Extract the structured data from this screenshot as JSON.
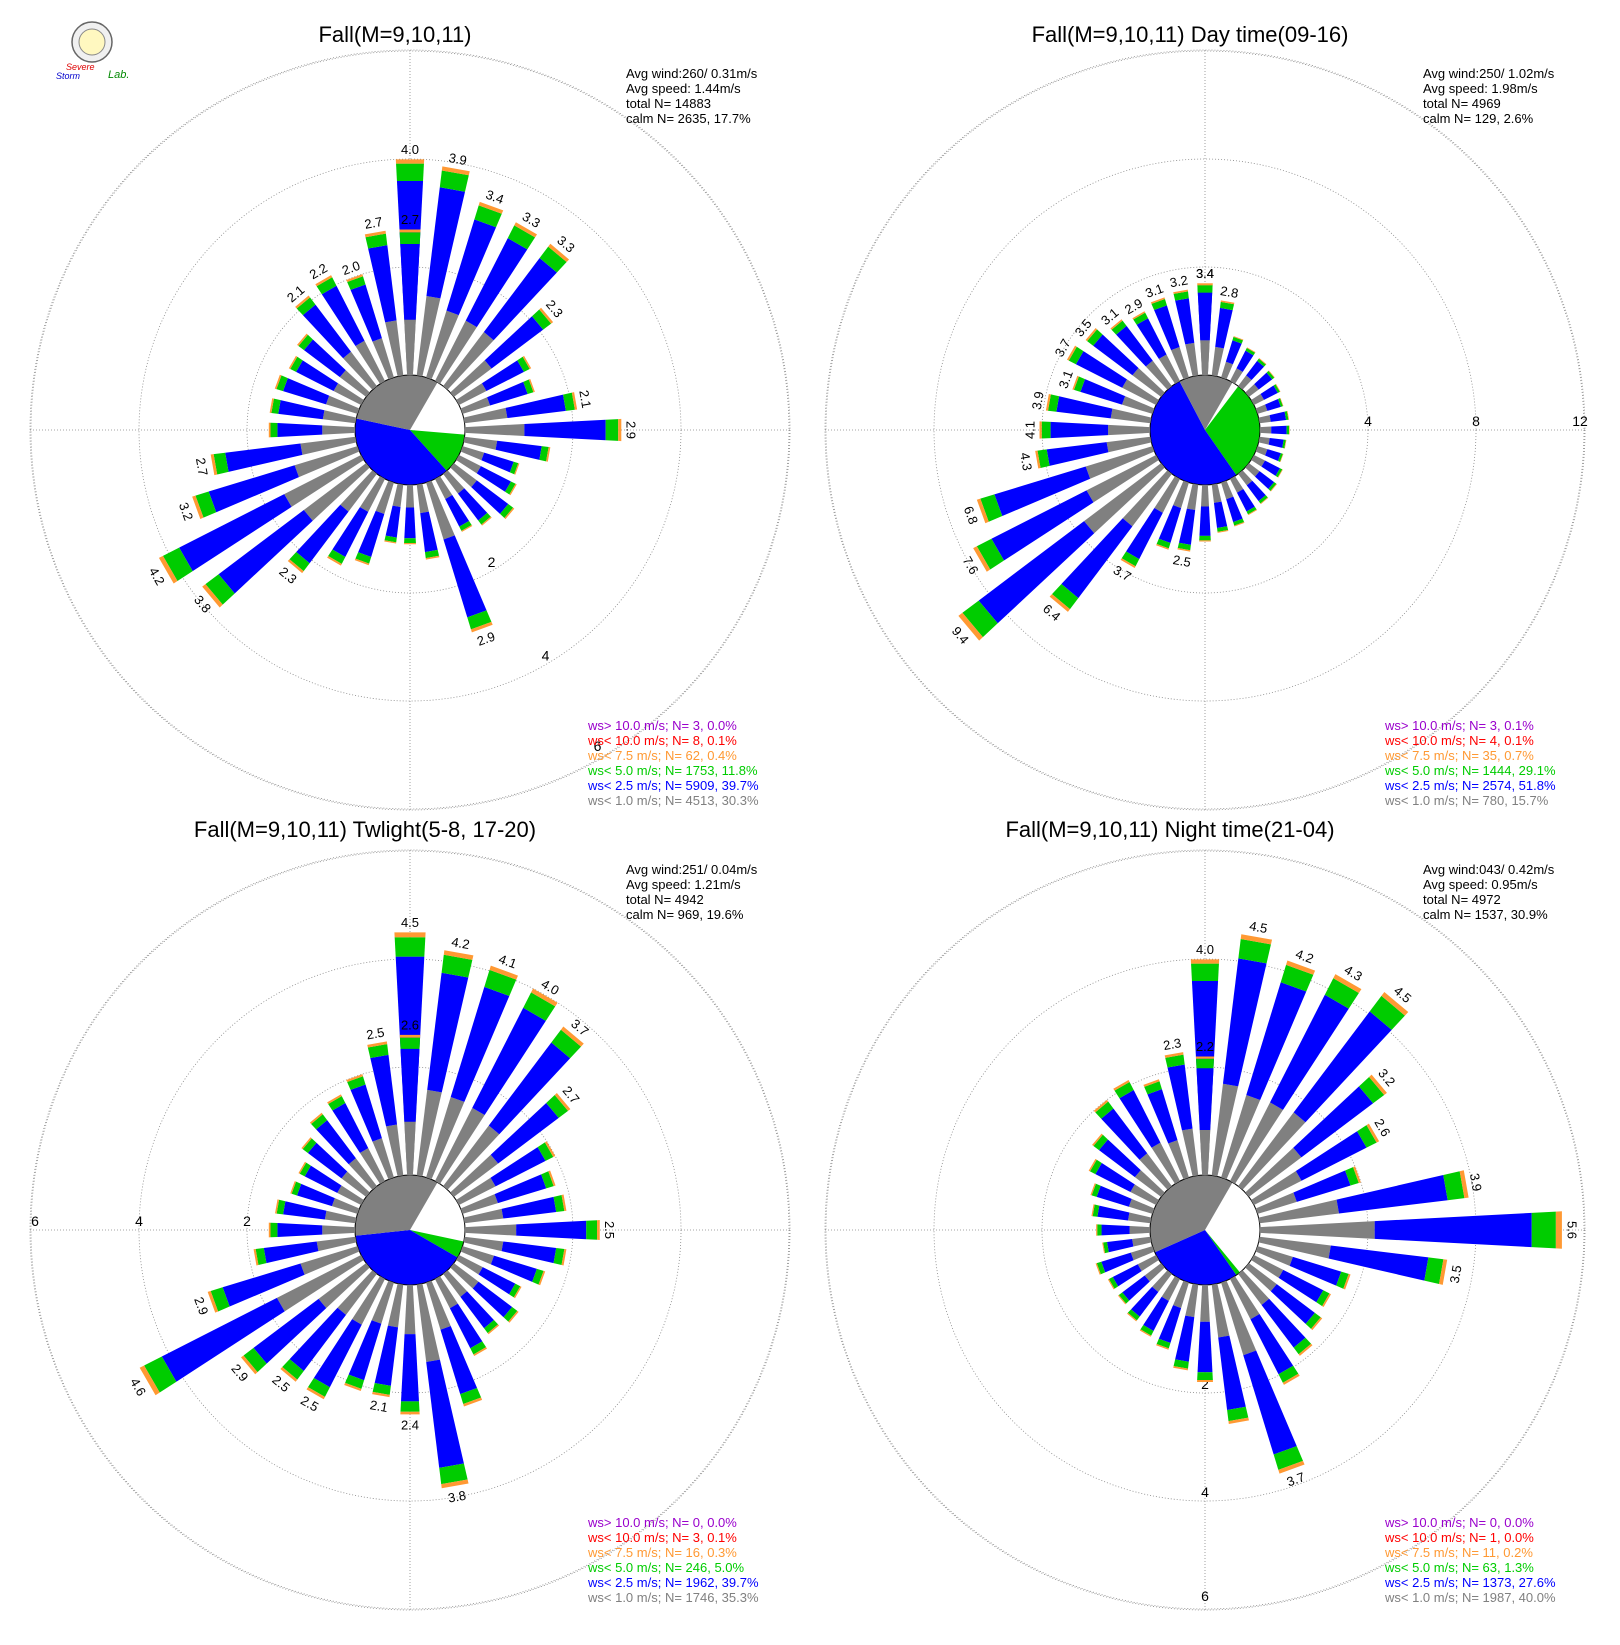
{
  "logo": {
    "text_top": "Severe",
    "text_bottom": "Storm",
    "text_lab": "Lab."
  },
  "colors": {
    "gt10": "#9900cc",
    "lt10": "#ff0000",
    "lt7_5": "#ff9933",
    "lt5": "#00cc00",
    "lt2_5": "#0000ff",
    "lt1": "#808080",
    "grid": "#888888"
  },
  "chart_data": [
    {
      "type": "polar-bar",
      "title": "Fall(M=9,10,11)",
      "stats": [
        "Avg wind:260/ 0.31m/s",
        "Avg speed: 1.44m/s",
        "total N=      14883",
        "calm N=   2635,  17.7%"
      ],
      "radial_max": 7,
      "ring_labels": [
        "2",
        "4",
        "6"
      ],
      "ring_values": [
        2,
        4,
        6
      ],
      "ring_label_angle_deg": 150,
      "calm_pct": 17.7,
      "calm_split": {
        "lt5": 12,
        "lt2_5": 40,
        "lt1": 30
      },
      "directions_deg_start": 0,
      "direction_step_deg": 10,
      "totals": [
        4.0,
        3.9,
        3.4,
        3.3,
        3.3,
        2.3,
        1.5,
        1.4,
        2.1,
        2.9,
        1.6,
        1.1,
        1.2,
        1.4,
        1.2,
        1.1,
        2.9,
        1.4,
        1.1,
        1.1,
        1.6,
        1.8,
        2.3,
        3.8,
        4.2,
        3.2,
        2.7,
        1.6,
        1.6,
        1.6,
        1.5,
        1.6,
        2.1,
        2.2,
        2.0,
        2.7,
        2.7
      ],
      "labeled_values": [
        "4.0",
        "3.9",
        "3.4",
        "3.3",
        "3.3",
        "2.3",
        "",
        "",
        "2.1",
        "2.9",
        "",
        "",
        "",
        "",
        "",
        "",
        "2.9",
        "",
        "",
        "",
        "",
        "",
        "2.3",
        "3.8",
        "4.2",
        "3.2",
        "2.7",
        "",
        "",
        "",
        "",
        "",
        "2.1",
        "2.2",
        "2.0",
        "2.7",
        "2.7"
      ],
      "legend": [
        "ws> 10.0 m/s; N=     3,  0.0%",
        "ws< 10.0 m/s; N=     8,  0.1%",
        "ws<  7.5 m/s; N=    62,  0.4%",
        "ws<  5.0 m/s; N=  1753, 11.8%",
        "ws<  2.5 m/s; N=  5909, 39.7%",
        "ws<  1.0 m/s; N=  4513, 30.3%"
      ]
    },
    {
      "type": "polar-bar",
      "title": "Fall(M=9,10,11) Day time(09-16)",
      "stats": [
        "Avg wind:250/ 1.02m/s",
        "Avg speed: 1.98m/s",
        "total N=       4969",
        "calm N=    129,   2.6%"
      ],
      "radial_max": 14,
      "ring_labels": [
        "4",
        "8",
        "12"
      ],
      "ring_values": [
        4,
        8,
        12
      ],
      "ring_label_angle_deg": 90,
      "calm_pct": 2.6,
      "calm_split": {
        "lt5": 30,
        "lt2_5": 52,
        "lt1": 16
      },
      "directions_deg_start": 0,
      "direction_step_deg": 10,
      "totals": [
        3.4,
        2.8,
        1.6,
        1.4,
        1.3,
        1.2,
        1.1,
        1.0,
        1.1,
        1.1,
        1.0,
        1.0,
        1.2,
        1.3,
        1.4,
        1.5,
        1.7,
        1.8,
        2.1,
        2.5,
        2.6,
        3.7,
        6.4,
        9.4,
        7.6,
        6.8,
        4.3,
        4.1,
        3.9,
        3.1,
        3.7,
        3.5,
        3.1,
        2.9,
        3.1,
        3.2,
        3.4
      ],
      "labeled_values": [
        "3.4",
        "2.8",
        "",
        "",
        "",
        "",
        "",
        "",
        "",
        "",
        "",
        "",
        "",
        "",
        "",
        "",
        "",
        "",
        "",
        "2.5",
        "",
        "3.7",
        "6.4",
        "9.4",
        "7.6",
        "6.8",
        "4.3",
        "4.1",
        "3.9",
        "3.1",
        "3.7",
        "3.5",
        "3.1",
        "2.9",
        "3.1",
        "3.2",
        "3.4"
      ],
      "legend": [
        "ws> 10.0 m/s; N=     3,  0.1%",
        "ws< 10.0 m/s; N=     4,  0.1%",
        "ws<  7.5 m/s; N=    35,  0.7%",
        "ws<  5.0 m/s; N=  1444, 29.1%",
        "ws<  2.5 m/s; N=  2574, 51.8%",
        "ws<  1.0 m/s; N=   780, 15.7%"
      ]
    },
    {
      "type": "polar-bar",
      "title": "Fall(M=9,10,11) Twlight(5-8, 17-20)",
      "stats": [
        "Avg wind:251/ 0.04m/s",
        "Avg speed: 1.21m/s",
        "total N=       4942",
        "calm N=    969,  19.6%"
      ],
      "radial_max": 7,
      "ring_labels": [
        "2",
        "4",
        "6"
      ],
      "ring_values": [
        2,
        4,
        6
      ],
      "ring_label_angle_deg": 270,
      "calm_pct": 19.6,
      "calm_split": {
        "lt5": 5,
        "lt2_5": 40,
        "lt1": 35
      },
      "directions_deg_start": 0,
      "direction_step_deg": 10,
      "totals": [
        4.5,
        4.2,
        4.1,
        4.0,
        3.7,
        2.7,
        2.0,
        1.8,
        1.9,
        2.5,
        1.9,
        1.6,
        1.3,
        1.5,
        1.4,
        1.6,
        2.4,
        3.8,
        2.4,
        2.1,
        2.1,
        2.5,
        2.5,
        2.9,
        4.6,
        2.9,
        1.9,
        1.6,
        1.5,
        1.3,
        1.3,
        1.5,
        1.7,
        1.8,
        2.0,
        2.5,
        2.6
      ],
      "labeled_values": [
        "4.5",
        "4.2",
        "4.1",
        "4.0",
        "3.7",
        "2.7",
        "",
        "",
        "",
        "2.5",
        "",
        "",
        "",
        "",
        "",
        "",
        "",
        "3.8",
        "2.4",
        "2.1",
        "",
        "2.5",
        "2.5",
        "2.9",
        "4.6",
        "2.9",
        "",
        "",
        "",
        "",
        "",
        "",
        "",
        "",
        "",
        "2.5",
        "2.6"
      ],
      "legend": [
        "ws> 10.0 m/s; N=     0,  0.0%",
        "ws< 10.0 m/s; N=     3,  0.1%",
        "ws<  7.5 m/s; N=    16,  0.3%",
        "ws<  5.0 m/s; N=   246,  5.0%",
        "ws<  2.5 m/s; N=  1962, 39.7%",
        "ws<  1.0 m/s; N=  1746, 35.3%"
      ]
    },
    {
      "type": "polar-bar",
      "title": "Fall(M=9,10,11) Night time(21-04)",
      "stats": [
        "Avg wind:043/ 0.42m/s",
        "Avg speed: 0.95m/s",
        "total N=       4972",
        "calm N=   1537,  30.9%"
      ],
      "radial_max": 7,
      "ring_labels": [
        "2",
        "4",
        "6"
      ],
      "ring_values": [
        2,
        4,
        6
      ],
      "ring_label_angle_deg": 180,
      "calm_pct": 30.9,
      "calm_split": {
        "lt5": 1.3,
        "lt2_5": 28,
        "lt1": 40
      },
      "directions_deg_start": 0,
      "direction_step_deg": 10,
      "totals": [
        4.0,
        4.5,
        4.2,
        4.3,
        4.5,
        3.2,
        2.6,
        2.0,
        3.9,
        5.6,
        3.5,
        1.8,
        1.6,
        1.7,
        1.9,
        2.2,
        3.7,
        2.6,
        1.8,
        1.6,
        1.3,
        1.2,
        1.1,
        1.0,
        1.0,
        1.1,
        0.9,
        1.0,
        1.1,
        1.2,
        1.4,
        1.6,
        2.0,
        2.1,
        1.9,
        2.3,
        2.2
      ],
      "labeled_values": [
        "4.0",
        "4.5",
        "4.2",
        "4.3",
        "4.5",
        "3.2",
        "2.6",
        "",
        "3.9",
        "5.6",
        "3.5",
        "",
        "",
        "",
        "",
        "",
        "3.7",
        "",
        "",
        "",
        "",
        "",
        "",
        "",
        "",
        "",
        "",
        "",
        "",
        "",
        "",
        "",
        "",
        "",
        "",
        "2.3",
        "2.2"
      ],
      "legend": [
        "ws> 10.0 m/s; N=     0,  0.0%",
        "ws< 10.0 m/s; N=     1,  0.0%",
        "ws<  7.5 m/s; N=    11,  0.2%",
        "ws<  5.0 m/s; N=    63,  1.3%",
        "ws<  2.5 m/s; N=  1373, 27.6%",
        "ws<  1.0 m/s; N=  1987, 40.0%"
      ]
    }
  ]
}
